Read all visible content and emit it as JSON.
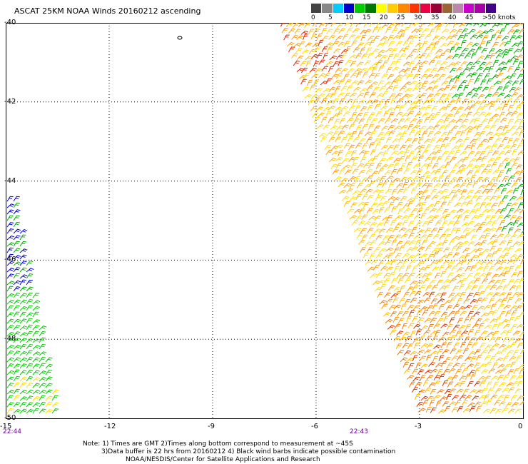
{
  "title": "ASCAT 25KM NOAA Winds 20160212 ascending",
  "legend": {
    "labels": [
      "0",
      "5",
      "10",
      "15",
      "20",
      "25",
      "30",
      "35",
      "40",
      "45",
      ">50 knots"
    ],
    "colors": [
      "#444444",
      "#888888",
      "#00ccff",
      "#0000cc",
      "#00cc00",
      "#007700",
      "#ffff00",
      "#ffcc00",
      "#ff8800",
      "#ff3300",
      "#ee0044",
      "#990033",
      "#996633",
      "#bb88aa",
      "#cc00cc",
      "#aa00aa",
      "#440088"
    ]
  },
  "axes": {
    "x_ticks": [
      "-15",
      "-12",
      "-9",
      "-6",
      "-3",
      "0"
    ],
    "y_ticks": [
      "-40",
      "-42",
      "-44",
      "-46",
      "-48",
      "-50"
    ]
  },
  "times": {
    "left": "22:44",
    "center": "22:43"
  },
  "notes": {
    "line1": "Note: 1) Times are GMT 2)Times along bottom correspond to measurement at ~45S",
    "line2": "3)Data buffer is 22 hrs from 20160212 4) Black wind barbs indicate possible contamination",
    "line3": "NOAA/NESDIS/Center for Satellite Applications and Research"
  }
}
